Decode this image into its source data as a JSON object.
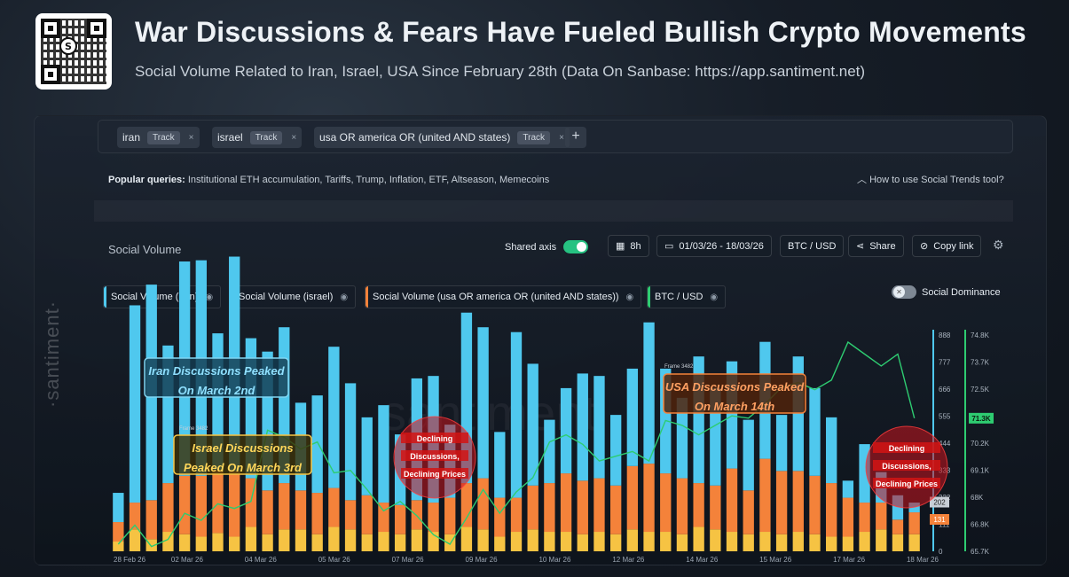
{
  "header": {
    "title": "War Discussions & Fears Have Fueled Bullish Crypto Movements",
    "subtitle": "Social Volume Related to Iran, Israel, USA Since February 28th (Data On Sanbase: https://app.santiment.net)"
  },
  "query_bar": {
    "chips": [
      {
        "label": "iran",
        "track": "Track",
        "close": "×"
      },
      {
        "label": "israel",
        "track": "Track",
        "close": "×"
      },
      {
        "label": "usa OR america OR (united AND states)",
        "track": "Track",
        "close": "×"
      }
    ],
    "add": "+"
  },
  "popular": {
    "label": "Popular queries:",
    "items": "Institutional ETH accumulation, Tariffs, Trump, Inflation, ETF, Altseason, Memecoins"
  },
  "howto": "How to use Social Trends tool?",
  "toolbar": {
    "section_label": "Social Volume",
    "shared_axis": "Shared axis",
    "interval": "8h",
    "date_range": "01/03/26 - 18/03/26",
    "pair": "BTC / USD",
    "share": "Share",
    "copy_link": "Copy link"
  },
  "legend": [
    {
      "label": "Social Volume (iran)",
      "color": "#4fc8ee"
    },
    {
      "label": "Social Volume (israel)",
      "color": "#f6c343"
    },
    {
      "label": "Social Volume (usa OR america OR (united AND states))",
      "color": "#f4823a"
    },
    {
      "label": "BTC / USD",
      "color": "#2ecc71"
    }
  ],
  "social_dominance": "Social Dominance",
  "watermark": "·santiment·",
  "annotations": {
    "iran": [
      "Iran Discussions Peaked",
      "On March 2nd"
    ],
    "israel": [
      "Israel Discussions",
      "Peaked On March 3rd"
    ],
    "usa": [
      "USA Discussions Peaked",
      "On March 14th"
    ],
    "declining1": [
      "Declining",
      "Discussions,",
      "Declining Prices"
    ],
    "declining2": [
      "Declining",
      "Discussions,",
      "Declining Prices"
    ],
    "frame1": "Frame 3482",
    "frame2": "Frame 3482"
  },
  "colors": {
    "iran": "#4fc8ee",
    "israel": "#f6c343",
    "usa": "#f4823a",
    "btc": "#2ecc71"
  },
  "chart_data": {
    "type": "bar",
    "x_ticks": [
      "28 Feb 26",
      "02 Mar 26",
      "04 Mar 26",
      "05 Mar 26",
      "07 Mar 26",
      "09 Mar 26",
      "10 Mar 26",
      "12 Mar 26",
      "14 Mar 26",
      "15 Mar 26",
      "17 Mar 26",
      "18 Mar 26"
    ],
    "social_axis": {
      "ticks": [
        0,
        111,
        222,
        333,
        444,
        555,
        666,
        777,
        888
      ],
      "range": [
        0,
        888
      ],
      "current_labels": [
        "131",
        "202"
      ]
    },
    "price_axis": {
      "ticks": [
        "65.7K",
        "66.8K",
        "68K",
        "69.1K",
        "70.2K",
        "71.3K",
        "72.5K",
        "73.7K",
        "74.8K"
      ],
      "range": [
        65700,
        74800
      ],
      "current": "71.3K"
    },
    "series": [
      {
        "name": "Social Volume (iran)",
        "values": [
          120,
          810,
          885,
          565,
          880,
          885,
          560,
          880,
          575,
          570,
          640,
          360,
          400,
          580,
          480,
          320,
          400,
          290,
          500,
          520,
          300,
          700,
          620,
          270,
          680,
          500,
          260,
          350,
          440,
          420,
          290,
          400,
          580,
          430,
          330,
          520,
          400,
          440,
          290,
          480,
          230,
          470,
          360,
          270,
          70,
          240,
          125,
          100,
          40
        ]
      },
      {
        "name": "Social Volume (israel)",
        "values": [
          40,
          90,
          50,
          80,
          70,
          60,
          75,
          60,
          100,
          70,
          90,
          90,
          70,
          100,
          90,
          70,
          80,
          70,
          90,
          80,
          70,
          100,
          90,
          60,
          80,
          90,
          80,
          80,
          70,
          80,
          70,
          90,
          80,
          80,
          70,
          100,
          90,
          80,
          70,
          80,
          70,
          80,
          70,
          60,
          60,
          80,
          90,
          70,
          70
        ]
      },
      {
        "name": "Social Volume (usa OR america OR (united AND states))",
        "values": [
          80,
          110,
          160,
          200,
          240,
          250,
          260,
          270,
          200,
          180,
          190,
          160,
          170,
          160,
          120,
          160,
          120,
          120,
          120,
          120,
          150,
          180,
          210,
          160,
          140,
          180,
          200,
          240,
          220,
          220,
          200,
          260,
          280,
          240,
          230,
          180,
          180,
          260,
          180,
          300,
          260,
          250,
          240,
          220,
          160,
          120,
          110,
          60,
          90
        ]
      },
      {
        "name": "BTC / USD",
        "values": [
          66000,
          66800,
          65900,
          66200,
          67300,
          67000,
          67700,
          67500,
          67800,
          70800,
          70500,
          70000,
          70300,
          69000,
          69100,
          68300,
          67400,
          67800,
          67200,
          66400,
          66000,
          67100,
          68300,
          67300,
          68200,
          68800,
          70300,
          70600,
          70200,
          69500,
          69700,
          69900,
          69500,
          71200,
          71000,
          70600,
          71000,
          71400,
          71300,
          71900,
          72600,
          72800,
          72500,
          72900,
          74500,
          74000,
          73500,
          74000,
          71300
        ]
      }
    ]
  }
}
